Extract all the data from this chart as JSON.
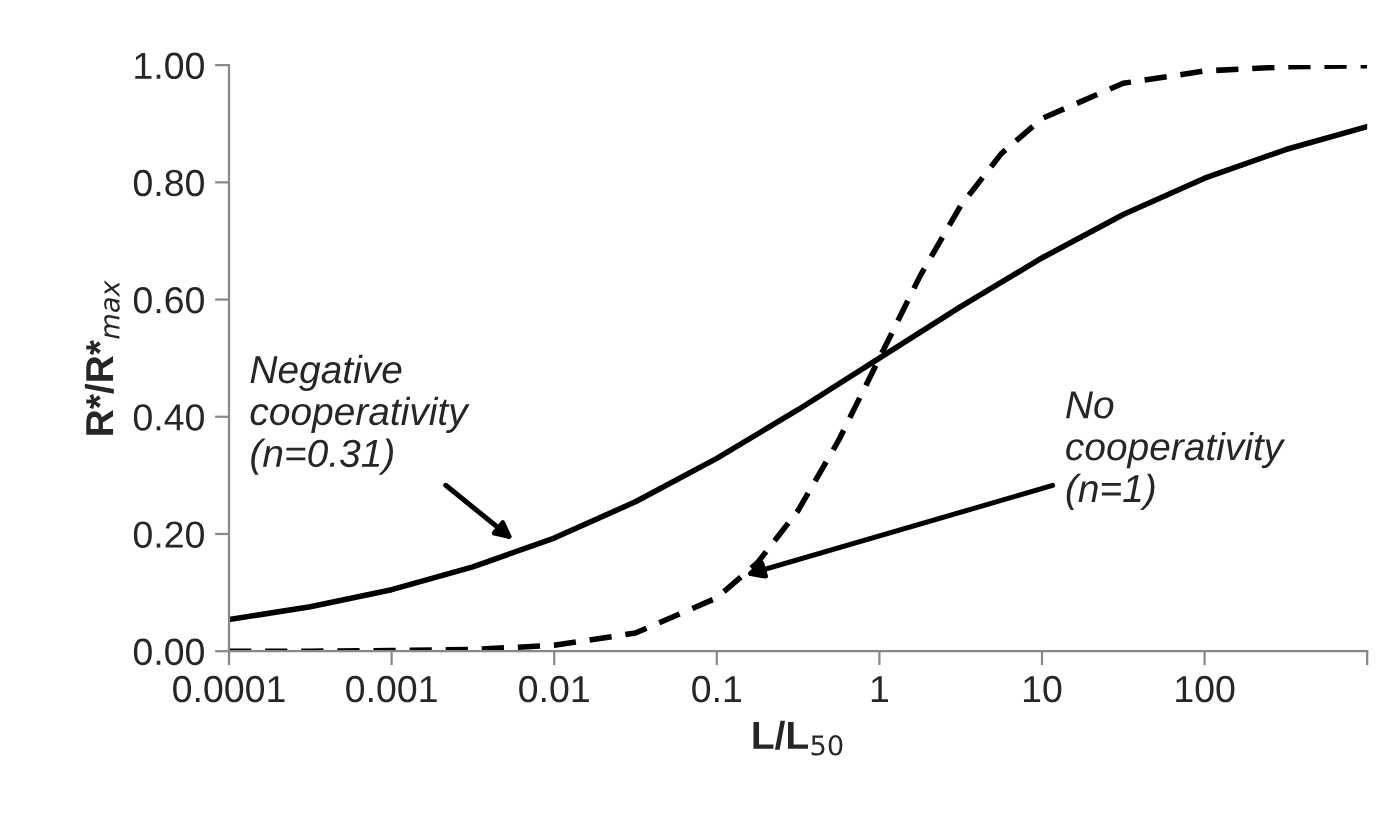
{
  "chart_data": {
    "type": "line",
    "xlabel": "L/L$_{50}$",
    "ylabel": "R*/R*$_{max}$",
    "log": "x",
    "xlim": [
      0.0001,
      1000
    ],
    "xticks": [
      {
        "value": 0.0001,
        "label": "0.0001"
      },
      {
        "value": 0.001,
        "label": "0.001"
      },
      {
        "value": 0.01,
        "label": "0.01"
      },
      {
        "value": 0.1,
        "label": "0.1"
      },
      1,
      10,
      100,
      {
        "value": 1000,
        "label": null
      }
    ],
    "ylim": [
      0,
      1
    ],
    "yticks": [
      {
        "value": 0,
        "label": "0.00"
      },
      {
        "value": 0.2,
        "label": "0.20"
      },
      {
        "value": 0.4,
        "label": "0.40"
      },
      {
        "value": 0.6,
        "label": "0.60"
      },
      {
        "value": 0.8,
        "label": "0.80"
      },
      {
        "value": 1,
        "label": "1.00"
      }
    ],
    "grid": false,
    "legend": false,
    "series": [
      {
        "color": "#000000",
        "line_style": "solid",
        "x": [
          0.0001,
          0.000316,
          0.001,
          0.00316,
          0.01,
          0.0316,
          0.1,
          0.316,
          1,
          3.16,
          10,
          31.6,
          100,
          316,
          1000
        ],
        "values": [
          0.054,
          0.076,
          0.105,
          0.144,
          0.193,
          0.255,
          0.329,
          0.412,
          0.5,
          0.588,
          0.671,
          0.745,
          0.807,
          0.856,
          0.895
        ]
      },
      {
        "color": "#000000",
        "line_style": "dashed",
        "x": [
          0.0001,
          0.000316,
          0.001,
          0.00316,
          0.01,
          0.0316,
          0.1,
          0.178,
          0.316,
          0.562,
          1,
          1.778,
          3.16,
          5.62,
          10,
          31.6,
          100,
          316,
          1000
        ],
        "values": [
          0.0,
          0.0,
          0.001,
          0.003,
          0.01,
          0.031,
          0.091,
          0.151,
          0.24,
          0.36,
          0.5,
          0.64,
          0.76,
          0.849,
          0.909,
          0.969,
          0.99,
          0.997,
          0.999
        ]
      }
    ],
    "annotations": [
      {
        "text": "Negative\ncooperativity\n(n=0.31)",
        "x": 0.0056,
        "y": 0.19
      },
      {
        "text": "No\ncooperativity\n(n=1)",
        "x": 0.15,
        "y": 0.13
      }
    ]
  }
}
